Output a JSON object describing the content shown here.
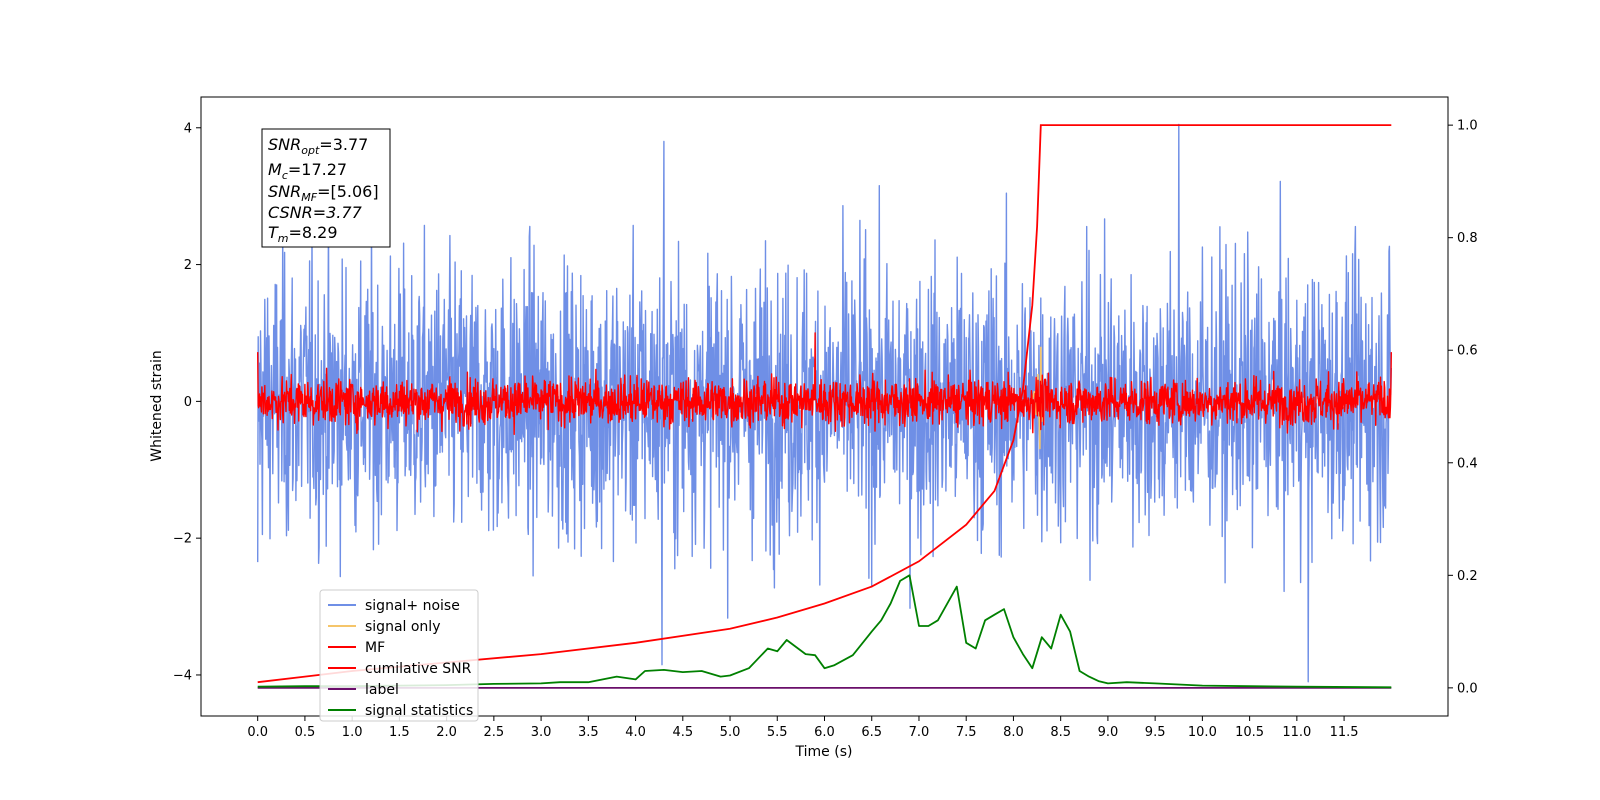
{
  "colors": {
    "signal_noise": "#6f8fe6",
    "signal_only": "#f5c56a",
    "mf": "#ff0000",
    "cumulative_snr": "#ff0000",
    "label": "#6a0f6a",
    "signal_statistics": "#008000"
  },
  "info_box": {
    "snr_opt_main": "SNR",
    "snr_opt_sub": "opt",
    "snr_opt_value": "=3.77",
    "mc_main": "M",
    "mc_sub": "c",
    "mc_value": "=17.27",
    "snr_mf_main": "SNR",
    "snr_mf_sub": "MF",
    "snr_mf_value": "=[5.06]",
    "csnr": "CSNR=3.77",
    "tm_main": "T",
    "tm_sub": "m",
    "tm_value": "=8.29"
  },
  "chart_data": {
    "type": "line",
    "title": "",
    "xlabel": "Time (s)",
    "ylabel": "Whitened strain",
    "xlim": [
      -0.6,
      12.6
    ],
    "ylim_left": [
      -4.6,
      4.45
    ],
    "ylim_right": [
      -0.05,
      1.05
    ],
    "x_ticks": [
      0.0,
      0.5,
      1.0,
      1.5,
      2.0,
      2.5,
      3.0,
      3.5,
      4.0,
      4.5,
      5.0,
      5.5,
      6.0,
      6.5,
      7.0,
      7.5,
      8.0,
      8.5,
      9.0,
      9.5,
      10.0,
      10.5,
      11.0,
      11.5
    ],
    "x_tick_labels": [
      "0.0",
      "0.5",
      "1.0",
      "1.5",
      "2.0",
      "2.5",
      "3.0",
      "3.5",
      "4.0",
      "4.5",
      "5.0",
      "5.5",
      "6.0",
      "6.5",
      "7.0",
      "7.5",
      "8.0",
      "8.5",
      "9.0",
      "9.5",
      "10.0",
      "10.5",
      "11.0",
      "11.5"
    ],
    "y_left_ticks": [
      -4,
      -2,
      0,
      2,
      4
    ],
    "y_left_tick_labels": [
      "−4",
      "−2",
      "0",
      "2",
      "4"
    ],
    "y_right_ticks": [
      0.0,
      0.2,
      0.4,
      0.6,
      0.8,
      1.0
    ],
    "y_right_tick_labels": [
      "0.0",
      "0.2",
      "0.4",
      "0.6",
      "0.8",
      "1.0"
    ],
    "legend_position": "lower-left",
    "legend": [
      {
        "key": "signal_noise",
        "label": "signal+ noise"
      },
      {
        "key": "signal_only",
        "label": "signal only"
      },
      {
        "key": "mf",
        "label": "MF"
      },
      {
        "key": "cumulative_snr",
        "label": "cumilative SNR"
      },
      {
        "key": "label",
        "label": "label"
      },
      {
        "key": "signal_statistics",
        "label": "signal statistics"
      }
    ],
    "series": [
      {
        "name": "signal+ noise",
        "axis": "left",
        "x_range": [
          0.0,
          12.0
        ],
        "std": 1.0,
        "spikes": [
          {
            "x": 4.3,
            "y": 3.8
          },
          {
            "x": 9.75,
            "y": 4.05
          },
          {
            "x": 11.12,
            "y": -4.1
          },
          {
            "x": 4.28,
            "y": -3.85
          },
          {
            "x": 0.0,
            "y": -2.35
          }
        ]
      },
      {
        "name": "signal only",
        "axis": "left",
        "x": [
          8.2,
          8.22,
          8.24,
          8.26,
          8.28,
          8.29,
          8.3,
          8.32
        ],
        "y": [
          0.0,
          0.15,
          -0.2,
          0.4,
          -0.7,
          0.8,
          -0.3,
          0.0
        ]
      },
      {
        "name": "MF",
        "axis": "left",
        "x_range": [
          0.0,
          12.0
        ],
        "std": 0.17,
        "spikes": [
          {
            "x": 5.9,
            "y": 1.0
          },
          {
            "x": 0.0,
            "y": 0.72
          },
          {
            "x": 12.0,
            "y": 0.72
          }
        ]
      },
      {
        "name": "cumilative SNR",
        "axis": "right",
        "x": [
          0.0,
          0.5,
          1.0,
          2.0,
          3.0,
          4.0,
          5.0,
          5.5,
          6.0,
          6.5,
          7.0,
          7.5,
          7.8,
          8.0,
          8.1,
          8.2,
          8.25,
          8.29,
          12.0
        ],
        "y": [
          0.01,
          0.02,
          0.03,
          0.045,
          0.06,
          0.08,
          0.105,
          0.125,
          0.15,
          0.18,
          0.225,
          0.29,
          0.35,
          0.44,
          0.53,
          0.68,
          0.82,
          1.0,
          1.0
        ]
      },
      {
        "name": "label",
        "axis": "right",
        "x": [
          0.0,
          12.0
        ],
        "y": [
          0.0,
          0.0
        ]
      },
      {
        "name": "signal statistics",
        "axis": "right",
        "x": [
          0.0,
          0.5,
          1.0,
          1.5,
          2.0,
          2.5,
          3.0,
          3.2,
          3.5,
          3.8,
          4.0,
          4.1,
          4.3,
          4.5,
          4.7,
          4.9,
          5.0,
          5.2,
          5.4,
          5.5,
          5.6,
          5.8,
          5.9,
          6.0,
          6.1,
          6.3,
          6.5,
          6.6,
          6.7,
          6.8,
          6.9,
          7.0,
          7.1,
          7.2,
          7.4,
          7.5,
          7.6,
          7.7,
          7.8,
          7.9,
          8.0,
          8.1,
          8.2,
          8.3,
          8.4,
          8.5,
          8.6,
          8.7,
          8.8,
          8.9,
          9.0,
          9.2,
          9.5,
          10.0,
          10.5,
          11.0,
          12.0
        ],
        "y": [
          0.002,
          0.003,
          0.003,
          0.004,
          0.005,
          0.007,
          0.008,
          0.01,
          0.01,
          0.02,
          0.015,
          0.03,
          0.032,
          0.028,
          0.03,
          0.02,
          0.022,
          0.035,
          0.07,
          0.065,
          0.085,
          0.06,
          0.058,
          0.035,
          0.04,
          0.058,
          0.1,
          0.12,
          0.15,
          0.19,
          0.2,
          0.11,
          0.11,
          0.12,
          0.18,
          0.08,
          0.07,
          0.12,
          0.13,
          0.14,
          0.09,
          0.06,
          0.035,
          0.09,
          0.07,
          0.13,
          0.1,
          0.03,
          0.02,
          0.012,
          0.008,
          0.01,
          0.008,
          0.004,
          0.003,
          0.002,
          0.001
        ]
      }
    ]
  }
}
